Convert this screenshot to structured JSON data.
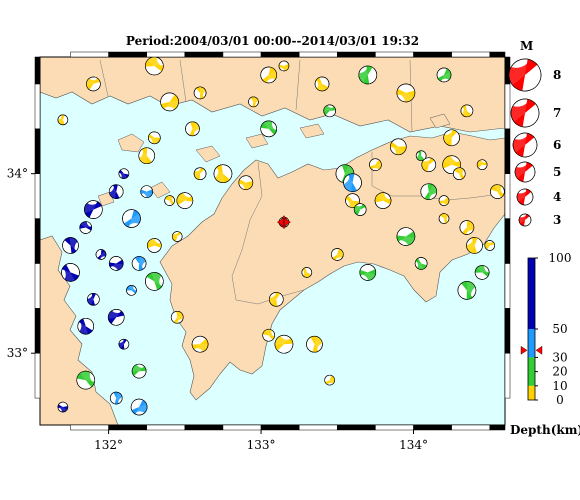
{
  "title": "Period:2004/03/01 00:00--2014/03/01 19:32",
  "axes": {
    "lon_ticks": [
      {
        "value": 132,
        "label": "132°"
      },
      {
        "value": 133,
        "label": "133°"
      },
      {
        "value": 134,
        "label": "134°"
      }
    ],
    "lat_ticks": [
      {
        "value": 34,
        "label": "34°"
      },
      {
        "value": 33,
        "label": "33°"
      }
    ],
    "lon_range": [
      131.55,
      134.6
    ],
    "lat_range": [
      32.6,
      34.65
    ]
  },
  "colors": {
    "sea": "#dcffff",
    "land": "#fbdcb4",
    "mechanism_red": "#ff0000",
    "depth_yellow": "#ffd200",
    "depth_green": "#32cd32",
    "depth_lightblue": "#1e9bff",
    "depth_darkblue": "#0000b4"
  },
  "magnitude_legend": {
    "title": "M",
    "entries": [
      "8",
      "7",
      "6",
      "5",
      "4",
      "3"
    ]
  },
  "depth_legend": {
    "ticks": [
      "100",
      "50",
      "30",
      "20",
      "10",
      "0"
    ],
    "label": "Depth(km)",
    "marker_depth_km": 35
  },
  "mainshock": {
    "lon": 133.15,
    "lat": 33.73,
    "depth_km": 35
  },
  "chart_data": {
    "type": "scatter",
    "title": "Period:2004/03/01 00:00--2014/03/01 19:32",
    "xlabel": "",
    "ylabel": "",
    "xlim": [
      131.55,
      134.6
    ],
    "ylim": [
      32.6,
      34.65
    ],
    "x_ticks": [
      "132°",
      "133°",
      "134°"
    ],
    "y_ticks": [
      "34°",
      "33°"
    ],
    "series": [
      {
        "name": "",
        "points": [
          [
            131.7,
            34.3,
            8
          ],
          [
            131.9,
            34.5,
            5
          ],
          [
            132.3,
            34.6,
            6
          ],
          [
            132.6,
            34.45,
            9
          ],
          [
            133.05,
            34.55,
            7
          ],
          [
            133.15,
            34.6,
            4
          ],
          [
            133.4,
            34.5,
            5
          ],
          [
            133.7,
            34.55,
            15
          ],
          [
            133.45,
            34.35,
            12
          ],
          [
            133.05,
            34.25,
            10
          ],
          [
            132.95,
            34.4,
            7
          ],
          [
            134.2,
            34.55,
            15
          ],
          [
            133.95,
            34.45,
            5
          ],
          [
            134.35,
            34.35,
            5
          ],
          [
            134.25,
            34.2,
            5
          ],
          [
            134.45,
            34.05,
            5
          ],
          [
            134.55,
            33.9,
            8
          ],
          [
            133.55,
            34.0,
            18
          ],
          [
            133.75,
            34.05,
            6
          ],
          [
            133.9,
            34.15,
            8
          ],
          [
            134.05,
            34.1,
            25
          ],
          [
            134.1,
            34.05,
            5
          ],
          [
            134.25,
            34.05,
            5
          ],
          [
            134.3,
            34.0,
            5
          ],
          [
            134.1,
            33.9,
            25
          ],
          [
            134.2,
            33.85,
            8
          ],
          [
            133.6,
            33.85,
            7
          ],
          [
            133.6,
            33.95,
            40
          ],
          [
            133.65,
            33.8,
            25
          ],
          [
            133.8,
            33.85,
            9
          ],
          [
            134.2,
            33.75,
            5
          ],
          [
            134.35,
            33.7,
            8
          ],
          [
            133.95,
            33.65,
            10
          ],
          [
            134.05,
            33.5,
            10
          ],
          [
            134.4,
            33.6,
            6
          ],
          [
            134.5,
            33.6,
            5
          ],
          [
            134.45,
            33.45,
            15
          ],
          [
            134.35,
            33.35,
            10
          ],
          [
            133.5,
            33.55,
            8
          ],
          [
            133.7,
            33.45,
            15
          ],
          [
            133.3,
            33.45,
            5
          ],
          [
            133.1,
            33.3,
            6
          ],
          [
            133.15,
            33.05,
            7
          ],
          [
            133.05,
            33.1,
            2
          ],
          [
            133.35,
            33.05,
            5
          ],
          [
            133.45,
            32.85,
            8
          ],
          [
            132.9,
            33.95,
            6
          ],
          [
            132.75,
            34.0,
            7
          ],
          [
            132.6,
            34.0,
            6
          ],
          [
            132.5,
            33.85,
            6
          ],
          [
            132.4,
            33.85,
            8
          ],
          [
            132.55,
            34.25,
            8
          ],
          [
            132.4,
            34.4,
            8
          ],
          [
            132.3,
            34.2,
            8
          ],
          [
            132.25,
            34.1,
            6
          ],
          [
            132.45,
            33.65,
            6
          ],
          [
            132.3,
            33.6,
            8
          ],
          [
            132.3,
            33.4,
            12
          ],
          [
            132.45,
            33.2,
            8
          ],
          [
            132.6,
            33.05,
            7
          ],
          [
            132.1,
            34.0,
            55
          ],
          [
            132.05,
            33.9,
            55
          ],
          [
            131.9,
            33.8,
            55
          ],
          [
            131.85,
            33.7,
            55
          ],
          [
            131.75,
            33.6,
            55
          ],
          [
            131.95,
            33.55,
            55
          ],
          [
            132.05,
            33.5,
            60
          ],
          [
            131.75,
            33.45,
            55
          ],
          [
            131.9,
            33.3,
            55
          ],
          [
            132.05,
            33.2,
            55
          ],
          [
            132.15,
            33.35,
            45
          ],
          [
            132.2,
            33.5,
            45
          ],
          [
            132.15,
            33.75,
            45
          ],
          [
            132.25,
            33.9,
            45
          ],
          [
            131.85,
            33.15,
            60
          ],
          [
            132.1,
            33.05,
            60
          ],
          [
            132.2,
            32.9,
            20
          ],
          [
            131.85,
            32.85,
            20
          ],
          [
            132.05,
            32.75,
            45
          ],
          [
            132.2,
            32.7,
            45
          ],
          [
            131.7,
            32.7,
            60
          ]
        ]
      }
    ]
  }
}
